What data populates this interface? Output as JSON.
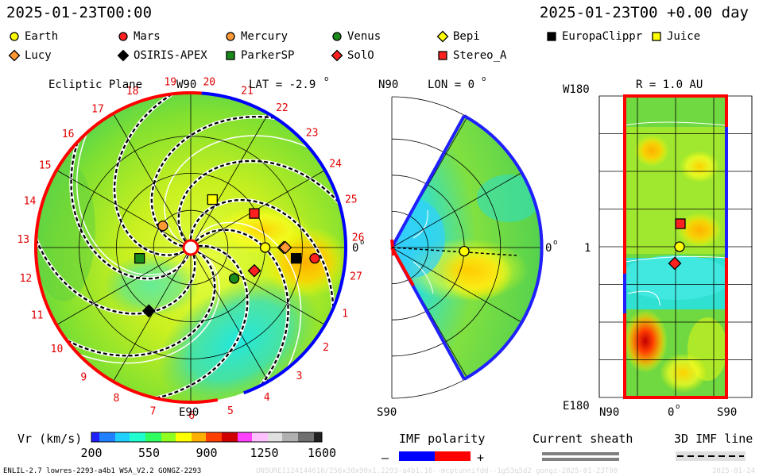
{
  "header": {
    "left_time": "2025-01-23T00:00",
    "right_time": "2025-01-23T00 +0.00 day"
  },
  "legend": [
    {
      "name": "Earth",
      "shape": "circle",
      "color": "#ffff00"
    },
    {
      "name": "Mars",
      "shape": "circle",
      "color": "#ff2020"
    },
    {
      "name": "Mercury",
      "shape": "circle",
      "color": "#ff9933"
    },
    {
      "name": "Venus",
      "shape": "circle",
      "color": "#1a8a1a"
    },
    {
      "name": "Bepi",
      "shape": "diamond",
      "color": "#ffff00"
    },
    {
      "name": "EuropaClippr",
      "shape": "square",
      "color": "#000000"
    },
    {
      "name": "Juice",
      "shape": "square",
      "color": "#ffff00"
    },
    {
      "name": "Lucy",
      "shape": "diamond",
      "color": "#ff9933"
    },
    {
      "name": "OSIRIS-APEX",
      "shape": "diamond",
      "color": "#000000"
    },
    {
      "name": "ParkerSP",
      "shape": "square",
      "color": "#1a8a1a"
    },
    {
      "name": "SolO",
      "shape": "diamond",
      "color": "#ff2020"
    },
    {
      "name": "Stereo_A",
      "shape": "square",
      "color": "#ff2020"
    }
  ],
  "panels": {
    "ecliptic": {
      "title": "Ecliptic Plane",
      "lat_label": "LAT = -2.9",
      "top_label": "W90",
      "bottom_label": "E90",
      "right_label": "0",
      "carrington_numbers": [
        "19",
        "20",
        "21",
        "22",
        "23",
        "24",
        "25",
        "26",
        "27",
        "1",
        "2",
        "3",
        "4",
        "5",
        "6",
        "7",
        "8",
        "9",
        "10",
        "11",
        "12",
        "13",
        "14",
        "15",
        "16",
        "17",
        "18"
      ]
    },
    "meridional": {
      "top_label": "N90",
      "lon_label": "LON = 0",
      "right_label": "0",
      "bottom_label": "S90"
    },
    "radial": {
      "title": "R = 1.0 AU",
      "top_left": "W180",
      "bottom_left": "E180",
      "left_mid": "1",
      "x_left": "N90",
      "x_mid": "0",
      "x_right": "S90"
    }
  },
  "colorbar": {
    "title": "Vr (km/s)",
    "ticks": [
      "200",
      "550",
      "900",
      "1250",
      "1600"
    ],
    "colors": [
      "#2020ff",
      "#2080ff",
      "#20d0ff",
      "#20ffd0",
      "#30ff60",
      "#90ff20",
      "#ffff00",
      "#ffb000",
      "#ff4000",
      "#d00000",
      "#ff40ff",
      "#ffc0ff",
      "#e0e0e0",
      "#b0b0b0",
      "#707070",
      "#202020"
    ]
  },
  "imf": {
    "title": "IMF polarity",
    "minus": "–",
    "plus": "+",
    "neg_color": "#0000ff",
    "pos_color": "#ff0000"
  },
  "sheath": {
    "title": "Current sheath"
  },
  "imf3d": {
    "title": "3D IMF line"
  },
  "footer": {
    "model": "ENLIL-2.7 lowres-2293-a4b1 WSA_V2.2 GONGZ-2293",
    "run_id": "UNSURE1124144616/256x30x90x1.2293-a4b1.16--mcptunnifdd--1g53q5d2 gongz-2025-01-23T00",
    "date": "2025-01-24"
  },
  "chart_data": [
    {
      "type": "heatmap",
      "title": "Ecliptic Plane",
      "xlabel": "",
      "ylabel": "",
      "quantity": "Vr (km/s)",
      "color_range": [
        200,
        1600
      ],
      "bodies": [
        {
          "name": "Earth",
          "marker": "circle",
          "color": "#ffff00",
          "dx": 0.48,
          "dy": 0.0
        },
        {
          "name": "Mars",
          "marker": "circle",
          "color": "#ff2020",
          "dx": 0.8,
          "dy": -0.07
        },
        {
          "name": "Mercury",
          "marker": "circle",
          "color": "#ff9933",
          "dx": -0.18,
          "dy": 0.14
        },
        {
          "name": "Venus",
          "marker": "circle",
          "color": "#1a8a1a",
          "dx": 0.28,
          "dy": -0.2
        },
        {
          "name": "Bepi",
          "marker": "diamond",
          "color": "#ffff00",
          "dx": 0.6,
          "dy": 0.0
        },
        {
          "name": "EuropaClippr",
          "marker": "square",
          "color": "#000000",
          "dx": 0.68,
          "dy": -0.07
        },
        {
          "name": "Juice",
          "marker": "square",
          "color": "#ffff00",
          "dx": 0.14,
          "dy": 0.31
        },
        {
          "name": "Lucy",
          "marker": "diamond",
          "color": "#ff9933",
          "dx": 0.61,
          "dy": 0.0
        },
        {
          "name": "OSIRIS-APEX",
          "marker": "diamond",
          "color": "#000000",
          "dx": -0.27,
          "dy": -0.41
        },
        {
          "name": "ParkerSP",
          "marker": "square",
          "color": "#1a8a1a",
          "dx": -0.33,
          "dy": -0.07
        },
        {
          "name": "SolO",
          "marker": "diamond",
          "color": "#ff2020",
          "dx": 0.41,
          "dy": -0.15
        },
        {
          "name": "Stereo_A",
          "marker": "square",
          "color": "#ff2020",
          "dx": 0.41,
          "dy": 0.22
        }
      ]
    },
    {
      "type": "heatmap",
      "title": "LON = 0",
      "quantity": "Vr (km/s)",
      "lat_range": [
        -60,
        60
      ],
      "bodies": [
        {
          "name": "Earth",
          "marker": "circle",
          "color": "#ffff00",
          "r": 0.48,
          "lat": -2.9
        }
      ]
    },
    {
      "type": "heatmap",
      "title": "R = 1.0 AU",
      "xlabel": "",
      "ylabel": "",
      "x_ticks": [
        "N90",
        "0",
        "S90"
      ],
      "y_ticks": [
        "W180",
        "1",
        "E180"
      ],
      "bodies": [
        {
          "name": "Stereo_A",
          "marker": "square",
          "color": "#ff2020"
        },
        {
          "name": "Earth",
          "marker": "circle",
          "color": "#ffff00"
        },
        {
          "name": "SolO",
          "marker": "diamond",
          "color": "#ff2020"
        }
      ]
    }
  ]
}
